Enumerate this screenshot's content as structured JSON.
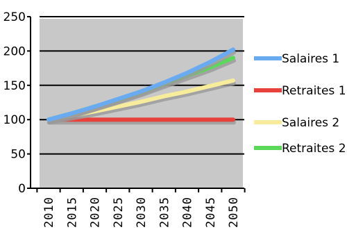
{
  "chart_data": {
    "type": "line",
    "title": "",
    "xlabel": "",
    "ylabel": "",
    "x": [
      2010,
      2015,
      2020,
      2025,
      2030,
      2035,
      2040,
      2045,
      2050
    ],
    "x_tick_labels": [
      "2010",
      "2015",
      "2020",
      "2025",
      "2030",
      "2035",
      "2040",
      "2045",
      "2050"
    ],
    "ylim": [
      0,
      250
    ],
    "y_ticks": [
      0,
      50,
      100,
      150,
      200,
      250
    ],
    "y_tick_labels": [
      "0",
      "50",
      "100",
      "150",
      "200",
      "250"
    ],
    "grid": true,
    "legend_position": "right",
    "plot_background": "#c8c8c8",
    "series": [
      {
        "name": "Salaires 1",
        "color": "#6aaaf0",
        "values": [
          100,
          109,
          119,
          130,
          141,
          154,
          168,
          184,
          202
        ]
      },
      {
        "name": "Retraites 1",
        "color": "#e8403a",
        "values": [
          100,
          100,
          100,
          100,
          100,
          100,
          100,
          100,
          100
        ]
      },
      {
        "name": "Salaires 2",
        "color": "#f7ec9c",
        "values": [
          100,
          106,
          112,
          119,
          126,
          134,
          141,
          149,
          157
        ]
      },
      {
        "name": "Retraites 2",
        "color": "#5cd85c",
        "values": [
          100,
          109,
          119,
          129,
          140,
          152,
          164,
          176,
          190
        ]
      }
    ]
  }
}
